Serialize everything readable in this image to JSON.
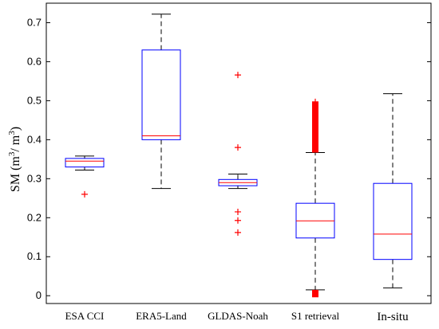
{
  "chart_data": {
    "type": "box",
    "ylabel_main": "SM (m",
    "ylabel_sup1": "3",
    "ylabel_mid": "/ m",
    "ylabel_sup2": "3",
    "ylabel_end": ")",
    "ylim": [
      -0.02,
      0.75
    ],
    "yticks": [
      0,
      0.1,
      0.2,
      0.3,
      0.4,
      0.5,
      0.6,
      0.7
    ],
    "ytick_labels": [
      "0",
      "0.1",
      "0.2",
      "0.3",
      "0.4",
      "0.5",
      "0.6",
      "0.7"
    ],
    "categories": [
      "ESA CCI",
      "ERA5-Land",
      "GLDAS-Noah",
      "S1 retrieval",
      "In-situ"
    ],
    "boxes": [
      {
        "name": "ESA CCI",
        "whisker_low": 0.322,
        "q1": 0.33,
        "median": 0.345,
        "q3": 0.352,
        "whisker_high": 0.358,
        "outliers": [
          0.26
        ]
      },
      {
        "name": "ERA5-Land",
        "whisker_low": 0.275,
        "q1": 0.4,
        "median": 0.41,
        "q3": 0.63,
        "whisker_high": 0.722,
        "outliers": []
      },
      {
        "name": "GLDAS-Noah",
        "whisker_low": 0.275,
        "q1": 0.282,
        "median": 0.29,
        "q3": 0.298,
        "whisker_high": 0.312,
        "outliers": [
          0.566,
          0.38,
          0.215,
          0.193,
          0.162
        ]
      },
      {
        "name": "S1 retrieval",
        "whisker_low": 0.015,
        "q1": 0.148,
        "median": 0.192,
        "q3": 0.237,
        "whisker_high": 0.367,
        "outliers_band_high": [
          0.367,
          0.497
        ],
        "outliers_band_low": [
          0.0,
          0.015
        ]
      },
      {
        "name": "In-situ",
        "whisker_low": 0.02,
        "q1": 0.093,
        "median": 0.158,
        "q3": 0.288,
        "whisker_high": 0.518,
        "outliers": []
      }
    ],
    "colors": {
      "box": "#0000ff",
      "median": "#ff0000",
      "whisker": "#000000",
      "outlier": "#ff0000"
    }
  }
}
